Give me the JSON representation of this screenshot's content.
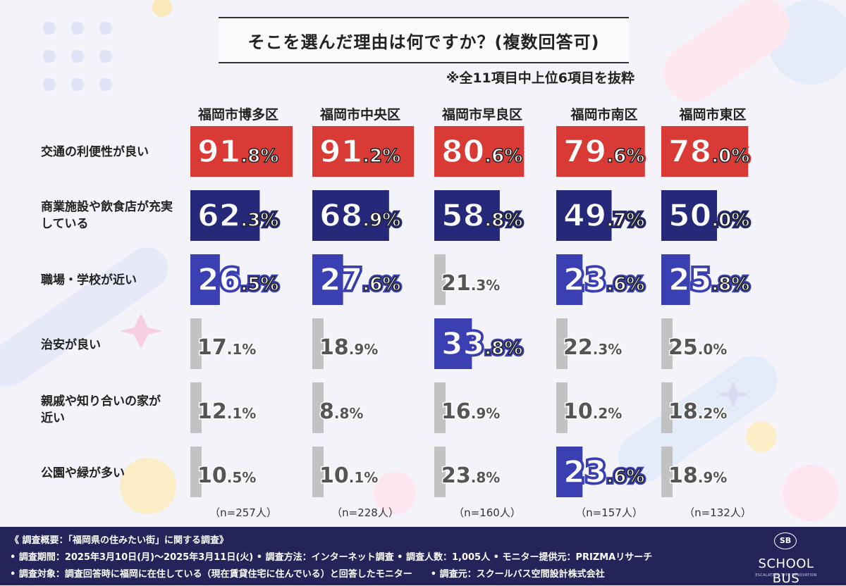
{
  "title": "そこを選んだ理由は何ですか？(複数回答可)",
  "note": "※全11項目中上位6項目を抜粋",
  "colors": {
    "top": "#d93a35",
    "second": "#26297a",
    "third": "#3a3fb2",
    "gray": "#c2c2c2"
  },
  "chart_data": {
    "type": "table",
    "columns": [
      "福岡市博多区",
      "福岡市中央区",
      "福岡市早良区",
      "福岡市南区",
      "福岡市東区"
    ],
    "rows": [
      {
        "label": "交通の利便性が良い",
        "values": [
          91.8,
          91.2,
          80.6,
          79.6,
          78.0
        ],
        "ranks": [
          1,
          1,
          1,
          1,
          1
        ]
      },
      {
        "label": "商業施設や飲食店が充実している",
        "values": [
          62.3,
          68.9,
          58.8,
          49.7,
          50.0
        ],
        "ranks": [
          2,
          2,
          2,
          2,
          2
        ]
      },
      {
        "label": "職場・学校が近い",
        "values": [
          26.5,
          27.6,
          21.3,
          23.6,
          25.8
        ],
        "ranks": [
          3,
          3,
          0,
          3,
          3
        ]
      },
      {
        "label": "治安が良い",
        "values": [
          17.1,
          18.9,
          33.8,
          22.3,
          25.0
        ],
        "ranks": [
          0,
          0,
          3,
          0,
          0
        ]
      },
      {
        "label": "親戚や知り合いの家が近い",
        "values": [
          12.1,
          8.8,
          16.9,
          10.2,
          18.2
        ],
        "ranks": [
          0,
          0,
          0,
          0,
          0
        ]
      },
      {
        "label": "公園や緑が多い",
        "values": [
          10.5,
          10.1,
          23.8,
          23.6,
          18.9
        ],
        "ranks": [
          0,
          0,
          0,
          3,
          0
        ]
      }
    ],
    "value_labels": [
      [
        "91.8%",
        "91.2%",
        "80.6%",
        "79.6%",
        "78.0%"
      ],
      [
        "62.3%",
        "68.9%",
        "58.8%",
        "49.7%",
        "50.0%"
      ],
      [
        "26.5%",
        "27.6%",
        "21.3%",
        "23.6%",
        "25.8%"
      ],
      [
        "17.1%",
        "18.9%",
        "33.8%",
        "22.3%",
        "25.0%"
      ],
      [
        "12.1%",
        "8.8%",
        "16.9%",
        "10.2%",
        "18.2%"
      ],
      [
        "10.5%",
        "10.1%",
        "23.8%",
        "23.6%",
        "18.9%"
      ]
    ],
    "sample_sizes": [
      "（n=257人）",
      "（n=228人）",
      "（n=160人）",
      "（n=157人）",
      "（n=132人）"
    ],
    "xlim": [
      0,
      100
    ]
  },
  "footer": {
    "line1": "《 調査概要：「福岡県の住みたい街」に関する調査》",
    "line2": "• 調査期間：2025年3月10日(月)〜2025年3月11日(火) • 調査方法：インターネット調査 • 調査人数：1,005人 • モニター提供元：PRIZMAリサーチ",
    "line3": "• 調査対象：調査回答時に福岡に在住している（現在賃貸住宅に住んでいる）と回答したモニター　　• 調査元：スクールバス空間設計株式会社"
  },
  "logo": {
    "mark": "SB",
    "name": "SCHOOL BUS",
    "tagline": "ESCALATION TYPE RENOVATION"
  }
}
